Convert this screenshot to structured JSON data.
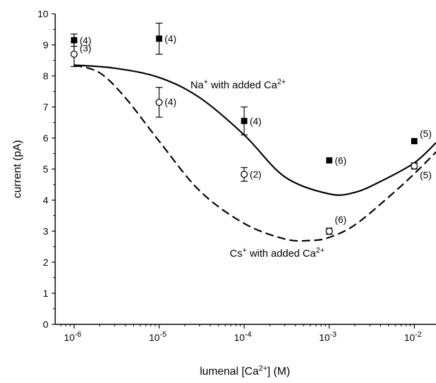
{
  "chart_data": {
    "type": "scatter",
    "xscale": "log",
    "xlim": [
      6e-07,
      0.018
    ],
    "ylim": [
      0,
      10
    ],
    "grid": false,
    "xlabel_parts": [
      "lumenal [Ca",
      "2+",
      "] (M)"
    ],
    "ylabel": "current (pA)",
    "x_ticks": [
      {
        "value": 1e-06,
        "base": "10",
        "exp": "-6"
      },
      {
        "value": 1e-05,
        "base": "10",
        "exp": "-5"
      },
      {
        "value": 0.0001,
        "base": "10",
        "exp": "-4"
      },
      {
        "value": 0.001,
        "base": "10",
        "exp": "-3"
      },
      {
        "value": 0.01,
        "base": "10",
        "exp": "-2"
      }
    ],
    "y_ticks": [
      "0",
      "1",
      "2",
      "3",
      "4",
      "5",
      "6",
      "7",
      "8",
      "9",
      "10"
    ],
    "series": [
      {
        "marker": "filled-square",
        "points": [
          {
            "x": 1e-06,
            "y": 9.15,
            "err": 0.2,
            "label": "(4)"
          },
          {
            "x": 1e-05,
            "y": 9.2,
            "err": 0.5,
            "label": "(4)"
          },
          {
            "x": 0.0001,
            "y": 6.55,
            "err": 0.45,
            "label": "(4)"
          },
          {
            "x": 0.001,
            "y": 5.28,
            "err": 0,
            "label": "(6)"
          },
          {
            "x": 0.01,
            "y": 5.9,
            "err": 0,
            "label": "(5)"
          }
        ]
      },
      {
        "marker": "open-circle",
        "points": [
          {
            "x": 1e-06,
            "y": 8.7,
            "err": 0.4,
            "label": "(3)"
          },
          {
            "x": 1e-05,
            "y": 7.15,
            "err": 0.48,
            "label": "(4)"
          },
          {
            "x": 0.0001,
            "y": 4.83,
            "err": 0.22,
            "label": "(2)"
          },
          {
            "x": 0.001,
            "y": 3.0,
            "err": 0.1,
            "label": "(6)"
          },
          {
            "x": 0.01,
            "y": 5.1,
            "err": 0.1,
            "label": "(5)"
          }
        ]
      }
    ],
    "curves": [
      {
        "style": "solid",
        "label_parts": [
          "Na",
          "+",
          " with added Ca",
          "2+"
        ],
        "points": [
          [
            1e-06,
            8.35
          ],
          [
            3e-06,
            8.25
          ],
          [
            1e-05,
            7.95
          ],
          [
            3e-05,
            7.3
          ],
          [
            0.0001,
            6.1
          ],
          [
            0.0003,
            4.75
          ],
          [
            0.001,
            4.2
          ],
          [
            0.002,
            4.25
          ],
          [
            0.004,
            4.6
          ],
          [
            0.01,
            5.2
          ],
          [
            0.018,
            5.85
          ]
        ]
      },
      {
        "style": "dashed",
        "label_parts": [
          "Cs",
          "+",
          " with added Ca",
          "2+"
        ],
        "points": [
          [
            1e-06,
            8.35
          ],
          [
            2e-06,
            8.1
          ],
          [
            4e-06,
            7.3
          ],
          [
            1e-05,
            5.9
          ],
          [
            3e-05,
            4.3
          ],
          [
            0.0001,
            3.25
          ],
          [
            0.0003,
            2.75
          ],
          [
            0.0006,
            2.7
          ],
          [
            0.001,
            2.8
          ],
          [
            0.002,
            3.2
          ],
          [
            0.005,
            4.1
          ],
          [
            0.01,
            4.85
          ],
          [
            0.018,
            5.55
          ]
        ]
      }
    ]
  }
}
